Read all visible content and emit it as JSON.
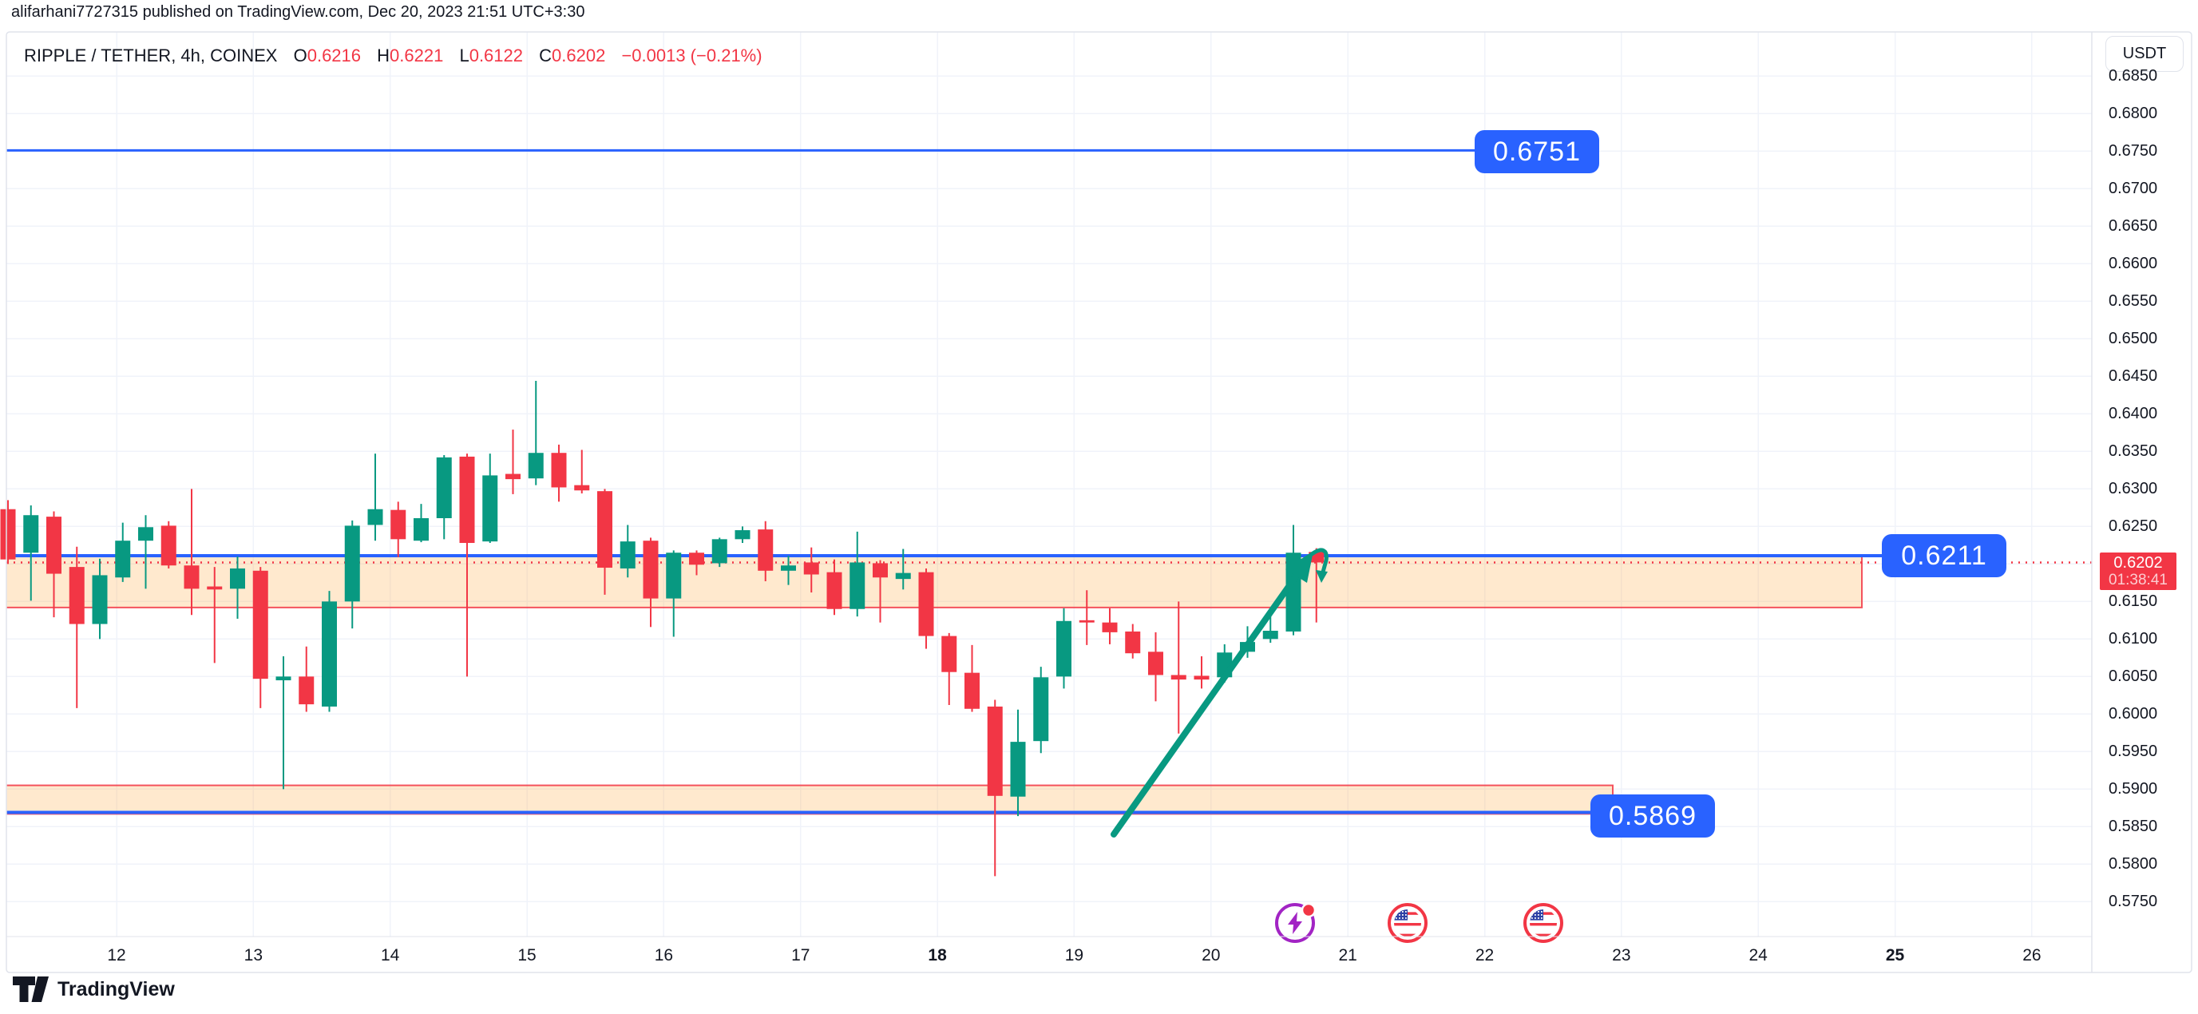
{
  "attribution": "alifarhani7727315 published on TradingView.com, Dec 20, 2023 21:51 UTC+3:30",
  "legend": {
    "symbol": "RIPPLE / TETHER, 4h, COINEX",
    "open_label": "O",
    "open": "0.6216",
    "high_label": "H",
    "high": "0.6221",
    "low_label": "L",
    "low": "0.6122",
    "close_label": "C",
    "close": "0.6202",
    "change": "−0.0013 (−0.21%)"
  },
  "price_scale_button": "USDT",
  "last_price": {
    "value": "0.6202",
    "countdown": "01:38:41"
  },
  "logo_text": "TradingView",
  "colors": {
    "up": "#089981",
    "down": "#F23645",
    "line_blue": "#2962FF",
    "zone_fill": "rgba(255,175,80,0.28)",
    "zone_border": "rgba(242,54,69,0.85)",
    "grid": "#F0F3FA",
    "text": "#131722",
    "axis_border": "#E0E3EB",
    "arrow": "#089981",
    "event_purple": "#A224C4",
    "event_red": "#F23645",
    "flag_blue": "#2E42A5"
  },
  "chart_data": {
    "type": "candlestick",
    "title": "RIPPLE / TETHER, 4h, COINEX",
    "symbol": "RIPPLE / TETHER",
    "interval": "4h",
    "exchange": "COINEX",
    "quote_currency": "USDT",
    "ylim": [
      0.575,
      0.685
    ],
    "y_tick_step": 0.005,
    "y_ticks": [
      "0.6850",
      "0.6800",
      "0.6750",
      "0.6700",
      "0.6650",
      "0.6600",
      "0.6550",
      "0.6500",
      "0.6450",
      "0.6400",
      "0.6350",
      "0.6300",
      "0.6250",
      "0.6150",
      "0.6100",
      "0.6050",
      "0.6000",
      "0.5950",
      "0.5900",
      "0.5850",
      "0.5800",
      "0.5750"
    ],
    "x_labels": [
      {
        "text": "12",
        "bold": false
      },
      {
        "text": "13",
        "bold": false
      },
      {
        "text": "14",
        "bold": false
      },
      {
        "text": "15",
        "bold": false
      },
      {
        "text": "16",
        "bold": false
      },
      {
        "text": "17",
        "bold": false
      },
      {
        "text": "18",
        "bold": true
      },
      {
        "text": "19",
        "bold": false
      },
      {
        "text": "20",
        "bold": false
      },
      {
        "text": "21",
        "bold": false
      },
      {
        "text": "22",
        "bold": false
      },
      {
        "text": "23",
        "bold": false
      },
      {
        "text": "24",
        "bold": false
      },
      {
        "text": "25",
        "bold": true
      },
      {
        "text": "26",
        "bold": false
      }
    ],
    "current_price": 0.6202,
    "levels": [
      {
        "label": "0.6751",
        "price": 0.6751
      },
      {
        "label": "0.6211",
        "price": 0.6211
      },
      {
        "label": "0.5869",
        "price": 0.5869
      }
    ],
    "zones": [
      {
        "top": 0.6211,
        "bottom": 0.6142
      },
      {
        "top": 0.5905,
        "bottom": 0.5867
      }
    ],
    "candles": [
      {
        "o": 0.6273,
        "h": 0.6285,
        "l": 0.62,
        "c": 0.6206
      },
      {
        "o": 0.6215,
        "h": 0.6278,
        "l": 0.6151,
        "c": 0.6265
      },
      {
        "o": 0.6263,
        "h": 0.627,
        "l": 0.6129,
        "c": 0.6187
      },
      {
        "o": 0.6196,
        "h": 0.6223,
        "l": 0.6008,
        "c": 0.612
      },
      {
        "o": 0.612,
        "h": 0.6207,
        "l": 0.61,
        "c": 0.6185
      },
      {
        "o": 0.6182,
        "h": 0.6255,
        "l": 0.6176,
        "c": 0.6231
      },
      {
        "o": 0.6231,
        "h": 0.6265,
        "l": 0.6167,
        "c": 0.6249
      },
      {
        "o": 0.6251,
        "h": 0.6257,
        "l": 0.6194,
        "c": 0.6198
      },
      {
        "o": 0.6198,
        "h": 0.63,
        "l": 0.6132,
        "c": 0.6167
      },
      {
        "o": 0.617,
        "h": 0.6196,
        "l": 0.6068,
        "c": 0.6166
      },
      {
        "o": 0.6167,
        "h": 0.621,
        "l": 0.6127,
        "c": 0.6194
      },
      {
        "o": 0.6191,
        "h": 0.6196,
        "l": 0.6008,
        "c": 0.6047
      },
      {
        "o": 0.6045,
        "h": 0.6077,
        "l": 0.59,
        "c": 0.605
      },
      {
        "o": 0.605,
        "h": 0.609,
        "l": 0.6003,
        "c": 0.6013
      },
      {
        "o": 0.601,
        "h": 0.6164,
        "l": 0.6003,
        "c": 0.615
      },
      {
        "o": 0.615,
        "h": 0.6258,
        "l": 0.6114,
        "c": 0.6251
      },
      {
        "o": 0.6252,
        "h": 0.6347,
        "l": 0.6231,
        "c": 0.6273
      },
      {
        "o": 0.6272,
        "h": 0.6283,
        "l": 0.6209,
        "c": 0.6233
      },
      {
        "o": 0.6231,
        "h": 0.628,
        "l": 0.6229,
        "c": 0.6261
      },
      {
        "o": 0.6261,
        "h": 0.6345,
        "l": 0.6233,
        "c": 0.6342
      },
      {
        "o": 0.6343,
        "h": 0.6347,
        "l": 0.605,
        "c": 0.6228
      },
      {
        "o": 0.623,
        "h": 0.6347,
        "l": 0.6228,
        "c": 0.6318
      },
      {
        "o": 0.632,
        "h": 0.6379,
        "l": 0.6293,
        "c": 0.6313
      },
      {
        "o": 0.6314,
        "h": 0.6444,
        "l": 0.6305,
        "c": 0.6348
      },
      {
        "o": 0.6348,
        "h": 0.6359,
        "l": 0.6283,
        "c": 0.6302
      },
      {
        "o": 0.6305,
        "h": 0.6352,
        "l": 0.6294,
        "c": 0.6298
      },
      {
        "o": 0.6297,
        "h": 0.63,
        "l": 0.6159,
        "c": 0.6195
      },
      {
        "o": 0.6194,
        "h": 0.6252,
        "l": 0.6182,
        "c": 0.623
      },
      {
        "o": 0.6231,
        "h": 0.6235,
        "l": 0.6116,
        "c": 0.6154
      },
      {
        "o": 0.6154,
        "h": 0.6218,
        "l": 0.6103,
        "c": 0.6215
      },
      {
        "o": 0.6215,
        "h": 0.6218,
        "l": 0.6185,
        "c": 0.6199
      },
      {
        "o": 0.6201,
        "h": 0.6235,
        "l": 0.6196,
        "c": 0.6233
      },
      {
        "o": 0.6233,
        "h": 0.625,
        "l": 0.6228,
        "c": 0.6245
      },
      {
        "o": 0.6246,
        "h": 0.6257,
        "l": 0.6177,
        "c": 0.6191
      },
      {
        "o": 0.6191,
        "h": 0.6211,
        "l": 0.6172,
        "c": 0.6198
      },
      {
        "o": 0.6202,
        "h": 0.6222,
        "l": 0.6162,
        "c": 0.6186
      },
      {
        "o": 0.6189,
        "h": 0.6206,
        "l": 0.6132,
        "c": 0.614
      },
      {
        "o": 0.614,
        "h": 0.6243,
        "l": 0.613,
        "c": 0.6202
      },
      {
        "o": 0.6201,
        "h": 0.6205,
        "l": 0.6122,
        "c": 0.6182
      },
      {
        "o": 0.618,
        "h": 0.622,
        "l": 0.6166,
        "c": 0.6188
      },
      {
        "o": 0.6189,
        "h": 0.6194,
        "l": 0.6087,
        "c": 0.6104
      },
      {
        "o": 0.6104,
        "h": 0.6108,
        "l": 0.6012,
        "c": 0.6056
      },
      {
        "o": 0.6055,
        "h": 0.6092,
        "l": 0.6003,
        "c": 0.6007
      },
      {
        "o": 0.601,
        "h": 0.6019,
        "l": 0.5784,
        "c": 0.5891
      },
      {
        "o": 0.589,
        "h": 0.6006,
        "l": 0.5864,
        "c": 0.5963
      },
      {
        "o": 0.5964,
        "h": 0.6063,
        "l": 0.5948,
        "c": 0.6049
      },
      {
        "o": 0.605,
        "h": 0.6141,
        "l": 0.6034,
        "c": 0.6124
      },
      {
        "o": 0.6125,
        "h": 0.6165,
        "l": 0.6092,
        "c": 0.6122
      },
      {
        "o": 0.6122,
        "h": 0.6141,
        "l": 0.6093,
        "c": 0.6109
      },
      {
        "o": 0.611,
        "h": 0.612,
        "l": 0.6074,
        "c": 0.6081
      },
      {
        "o": 0.6083,
        "h": 0.6109,
        "l": 0.6017,
        "c": 0.6052
      },
      {
        "o": 0.6052,
        "h": 0.615,
        "l": 0.5974,
        "c": 0.6046
      },
      {
        "o": 0.6051,
        "h": 0.6077,
        "l": 0.6034,
        "c": 0.6046
      },
      {
        "o": 0.6049,
        "h": 0.6093,
        "l": 0.6042,
        "c": 0.6082
      },
      {
        "o": 0.6083,
        "h": 0.6117,
        "l": 0.6075,
        "c": 0.6096
      },
      {
        "o": 0.61,
        "h": 0.6141,
        "l": 0.6095,
        "c": 0.6111
      },
      {
        "o": 0.611,
        "h": 0.6252,
        "l": 0.6105,
        "c": 0.6215
      },
      {
        "o": 0.6216,
        "h": 0.6221,
        "l": 0.6122,
        "c": 0.6202
      }
    ],
    "annotations": {
      "trend_arrow": {
        "from_candle": 48.2,
        "from_price": 0.584,
        "to_candle": 56.6,
        "to_price": 0.6215,
        "style": "curved-arrow-up"
      }
    }
  },
  "events": [
    {
      "icon": "economic-event-bolt",
      "x": 1622
    },
    {
      "icon": "us-flag-event",
      "x": 1763
    },
    {
      "icon": "us-flag-event",
      "x": 1933
    }
  ]
}
